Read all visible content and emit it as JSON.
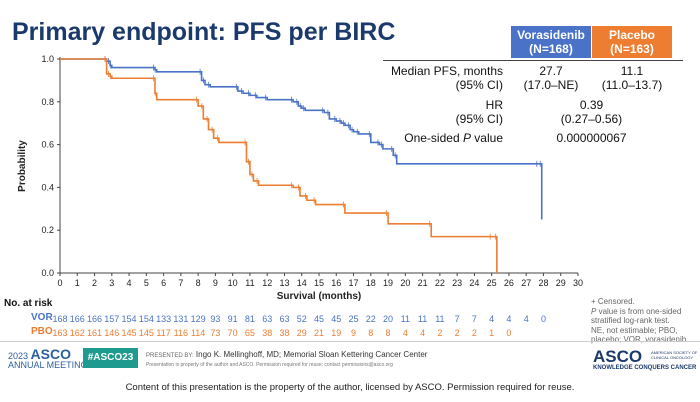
{
  "slide": {
    "title": "Primary endpoint: PFS per BIRC"
  },
  "table": {
    "vor_header": [
      "Vorasidenib",
      "(N=168)"
    ],
    "pbo_header": [
      "Placebo",
      "(N=163)"
    ],
    "rows": [
      {
        "label": [
          "Median PFS, months",
          "(95% CI)"
        ],
        "vor": [
          "27.7",
          "(17.0–NE)"
        ],
        "pbo": [
          "11.1",
          "(11.0–13.7)"
        ]
      },
      {
        "label": [
          "HR",
          "(95% CI)"
        ],
        "both": [
          "0.39",
          "(0.27–0.56)"
        ]
      },
      {
        "label_pre": "One-sided ",
        "label_italic": "P",
        "label_post": " value",
        "both": "0.000000067"
      }
    ]
  },
  "chart_data": {
    "type": "line",
    "title": "",
    "xlabel": "Survival (months)",
    "ylabel": "Probability",
    "xlim": [
      0,
      30
    ],
    "ylim": [
      0,
      1
    ],
    "xticks": [
      0,
      1,
      2,
      3,
      4,
      5,
      6,
      7,
      8,
      9,
      10,
      11,
      12,
      13,
      14,
      15,
      16,
      17,
      18,
      19,
      20,
      21,
      22,
      23,
      24,
      25,
      26,
      27,
      28,
      29,
      30
    ],
    "yticks": [
      "0.0",
      "0.2",
      "0.4",
      "0.6",
      "0.8",
      "1.0"
    ],
    "series": [
      {
        "name": "VOR",
        "color": "#4a73c8",
        "x": [
          0,
          2.7,
          2.9,
          3.0,
          5.5,
          5.6,
          8.2,
          8.4,
          8.7,
          10.3,
          10.6,
          11.0,
          11.4,
          12.0,
          13.5,
          13.8,
          14.0,
          14.2,
          15.3,
          15.6,
          16.0,
          16.3,
          16.5,
          16.8,
          17.0,
          17.3,
          18.0,
          18.5,
          18.7,
          19.3,
          19.5,
          27.7,
          27.9
        ],
        "y": [
          1.0,
          0.99,
          0.97,
          0.96,
          0.95,
          0.94,
          0.9,
          0.88,
          0.87,
          0.85,
          0.84,
          0.83,
          0.82,
          0.81,
          0.8,
          0.78,
          0.77,
          0.76,
          0.75,
          0.72,
          0.71,
          0.7,
          0.69,
          0.67,
          0.66,
          0.65,
          0.61,
          0.6,
          0.58,
          0.55,
          0.51,
          0.51,
          0.25
        ]
      },
      {
        "name": "PBO",
        "color": "#ed7d31",
        "x": [
          0,
          2.7,
          2.9,
          3.0,
          5.5,
          5.6,
          8.0,
          8.3,
          8.6,
          8.9,
          9.2,
          10.8,
          11.0,
          11.2,
          11.5,
          13.5,
          13.9,
          14.3,
          14.8,
          16.5,
          19.0,
          21.5,
          25.0,
          25.3
        ],
        "y": [
          1.0,
          0.93,
          0.92,
          0.91,
          0.84,
          0.81,
          0.78,
          0.72,
          0.67,
          0.63,
          0.61,
          0.52,
          0.46,
          0.43,
          0.41,
          0.4,
          0.36,
          0.34,
          0.32,
          0.28,
          0.23,
          0.17,
          0.17,
          0.0
        ]
      }
    ],
    "censor_marks": "tick"
  },
  "risk": {
    "title": "No. at risk",
    "rows": [
      {
        "name": "VOR",
        "color": "#4a73c8",
        "values": [
          "168",
          "166",
          "166",
          "157",
          "154",
          "154",
          "133",
          "131",
          "129",
          "93",
          "91",
          "81",
          "63",
          "63",
          "52",
          "45",
          "45",
          "25",
          "22",
          "20",
          "11",
          "11",
          "11",
          "7",
          "7",
          "4",
          "4",
          "4",
          "0"
        ]
      },
      {
        "name": "PBO",
        "color": "#ed7d31",
        "values": [
          "163",
          "162",
          "161",
          "146",
          "145",
          "145",
          "117",
          "116",
          "114",
          "73",
          "70",
          "65",
          "38",
          "38",
          "29",
          "21",
          "19",
          "9",
          "8",
          "8",
          "4",
          "4",
          "2",
          "2",
          "2",
          "1",
          "0"
        ]
      }
    ]
  },
  "footnote": {
    "censored": "+ Censored.",
    "italic_p": "P",
    "rest": " value is from one-sided stratified log-rank test.",
    "abbrev": "NE, not estimable; PBO, placebo; VOR, vorasidenib."
  },
  "footer": {
    "meeting_year": "2023",
    "meeting_brand": "ASCO",
    "meeting_sub": "ANNUAL MEETING",
    "hashtag": "#ASCO23",
    "presented_by": "PRESENTED BY:",
    "presenter": "Ingo K. Mellinghoff, MD; Memorial Sloan Kettering Cancer Center",
    "presented_note": "Presentation is property of the author and ASCO. Permission required for reuse; contact permissions@asco.org",
    "asco_logo": "ASCO",
    "asco_tagline": "KNOWLEDGE CONQUERS CANCER",
    "asco_society": "AMERICAN SOCIETY OF CLINICAL ONCOLOGY",
    "content_note": "Content of this presentation is the property of the author, licensed by ASCO. Permission required for reuse."
  }
}
